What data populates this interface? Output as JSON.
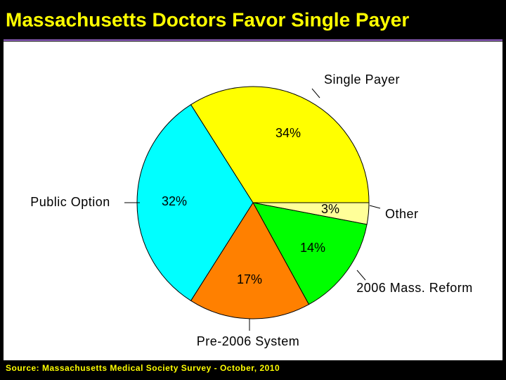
{
  "chart_data": {
    "type": "pie",
    "title": "Massachusetts Doctors Favor Single Payer",
    "categories": [
      "Other",
      "2006 Mass. Reform",
      "Pre-2006 System",
      "Public Option",
      "Single Payer"
    ],
    "values": [
      3,
      14,
      17,
      32,
      34
    ],
    "value_labels": [
      "3%",
      "14%",
      "17%",
      "32%",
      "34%"
    ],
    "colors": [
      "#ffff99",
      "#00ff00",
      "#ff8000",
      "#00ffff",
      "#ffff00"
    ],
    "source": "Source:  Massachusetts Medical Society Survey - October, 2010"
  }
}
